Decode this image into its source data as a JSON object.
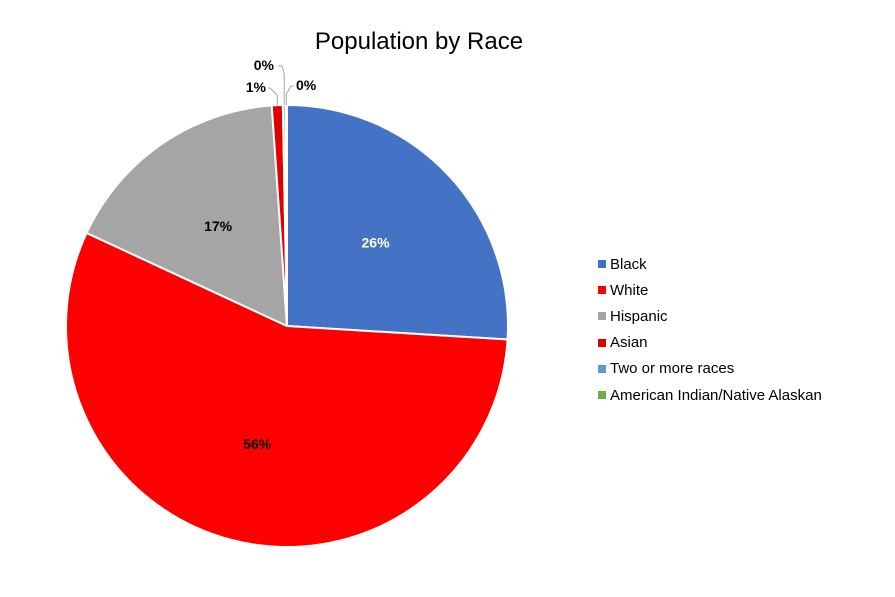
{
  "chart_data": {
    "type": "pie",
    "title": "Population by Race",
    "start_angle": "12 o'clock",
    "direction": "clockwise",
    "slices": [
      {
        "label": "Black",
        "value": 26,
        "data_label": "26%",
        "color": "#4472C4",
        "label_color": "#FFFFFF"
      },
      {
        "label": "White",
        "value": 56,
        "data_label": "56%",
        "color": "#FF0000",
        "label_color": "#000000"
      },
      {
        "label": "Hispanic",
        "value": 17,
        "data_label": "17%",
        "color": "#A5A5A5",
        "label_color": "#000000"
      },
      {
        "label": "Asian",
        "value": 0.8,
        "data_label": "1%",
        "color": "#E10000",
        "label_color": "#000000"
      },
      {
        "label": "Two or more races",
        "value": 0.2,
        "data_label": "0%",
        "color": "#5B9BD5",
        "label_color": "#000000"
      },
      {
        "label": "American Indian/Native Alaskan",
        "value": 0.1,
        "data_label": "0%",
        "color": "#70AD47",
        "label_color": "#000000"
      }
    ],
    "legend_position": "right"
  }
}
